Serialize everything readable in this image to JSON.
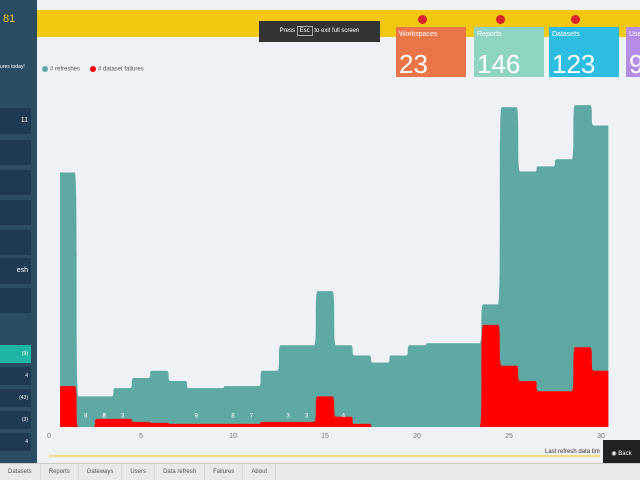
{
  "header": {
    "app_code": "81",
    "fullscreen_hint": {
      "before": "Press",
      "key": "Esc",
      "after": "to exit full screen"
    }
  },
  "sidebar": {
    "heading": "ures today!",
    "items": [
      "11",
      "esh"
    ],
    "small_values": [
      "(9)",
      "4",
      "(43)",
      "(3)",
      "4"
    ]
  },
  "tiles": [
    {
      "title": "Workspaces",
      "value": "23",
      "color": "#ea7548"
    },
    {
      "title": "Reports",
      "value": "146",
      "color": "#8fd3c3"
    },
    {
      "title": "Datasets",
      "value": "123",
      "color": "#2cbde1"
    },
    {
      "title": "Use",
      "value": "9",
      "color": "#b58ce6"
    }
  ],
  "chart": {
    "type": "area",
    "x": [
      1,
      2,
      3,
      4,
      5,
      6,
      7,
      8,
      9,
      10,
      11,
      12,
      13,
      14,
      15,
      16,
      17,
      18,
      19,
      20,
      21,
      22,
      23,
      24,
      25,
      26,
      27,
      28,
      29,
      30
    ],
    "series": [
      {
        "name": "# refreshes",
        "color": "#5fa9a5",
        "values": [
          249,
          30,
          30,
          38,
          48,
          55,
          45,
          38,
          38,
          40,
          40,
          55,
          80,
          80,
          133,
          80,
          70,
          63,
          70,
          80,
          82,
          82,
          82,
          120,
          313,
          250,
          255,
          262,
          315,
          295
        ]
      },
      {
        "name": "# dataset failures",
        "color": "#ff0000",
        "values": [
          40,
          0,
          8,
          8,
          5,
          4,
          3,
          3,
          3,
          3,
          3,
          5,
          5,
          5,
          30,
          10,
          3,
          0,
          0,
          0,
          0,
          0,
          0,
          100,
          60,
          45,
          35,
          35,
          78,
          55
        ]
      }
    ],
    "xlim": [
      0,
      31
    ],
    "xticks": [
      0,
      5,
      10,
      15,
      20,
      25,
      30
    ],
    "ylim": [
      0,
      320
    ],
    "point_labels": [
      {
        "x": 2,
        "label": "8"
      },
      {
        "x": 3,
        "label": "6"
      },
      {
        "x": 3,
        "label": "3"
      },
      {
        "x": 4,
        "label": "3"
      },
      {
        "x": 8,
        "label": "9"
      },
      {
        "x": 10,
        "label": "8"
      },
      {
        "x": 11,
        "label": "7"
      },
      {
        "x": 13,
        "label": "3"
      },
      {
        "x": 14,
        "label": "3"
      },
      {
        "x": 16,
        "label": "4"
      }
    ],
    "footnote": "Last refresh data tim"
  },
  "back_button": "Back",
  "tabs": [
    "Datasets",
    "Reports",
    "Gateways",
    "Users",
    "Data refresh",
    "Failures",
    "About"
  ]
}
